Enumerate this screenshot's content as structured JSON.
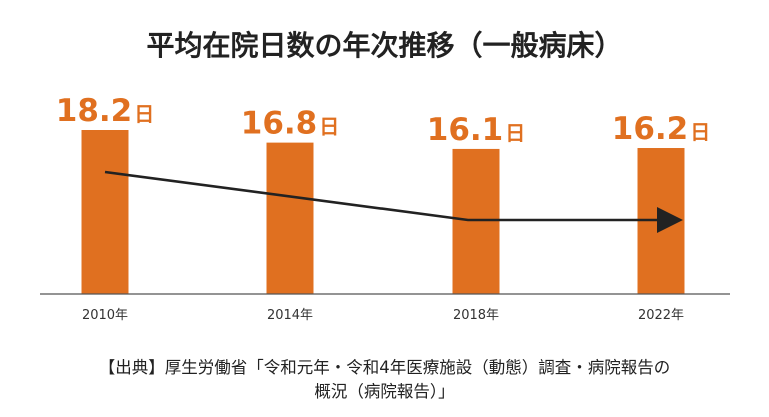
{
  "chart_data": {
    "type": "bar",
    "title": "平均在院日数の年次推移（一般病床）",
    "categories": [
      "2010年",
      "2014年",
      "2018年",
      "2022年"
    ],
    "values": [
      18.2,
      16.8,
      16.1,
      16.2
    ],
    "value_unit": "日",
    "xlabel": "",
    "ylabel": "",
    "ylim": [
      0,
      18.2
    ],
    "grid": false,
    "legend": "none",
    "bar_color": "#E07020",
    "label_color": "#E07020",
    "trend_arrow_color": "#222222",
    "source_line1": "【出典】厚生労働省「令和元年・令和4年医療施設（動態）調査・病院報告の",
    "source_line2": "概況（病院報告）」"
  }
}
